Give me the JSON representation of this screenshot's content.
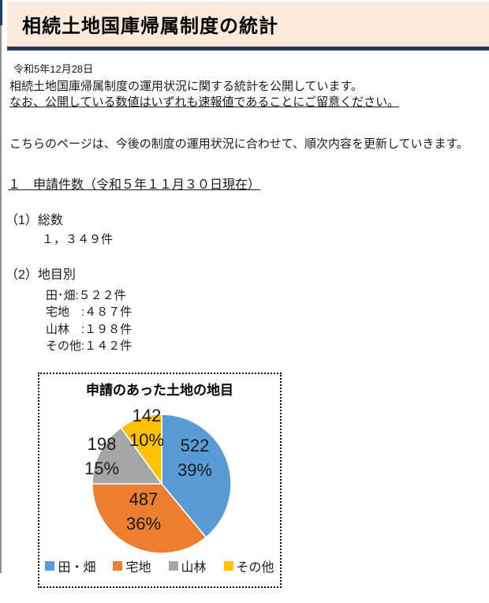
{
  "header": {
    "title": "相続土地国庫帰属制度の統計"
  },
  "date": "令和5年12月28日",
  "intro": {
    "line1": "相続土地国庫帰属制度の運用状況に関する統計を公開しています。",
    "line2": "なお、公開している数値はいずれも速報値であることにご留意ください。",
    "line3": "こちらのページは、今後の制度の運用状況に合わせて、順次内容を更新していきます。"
  },
  "section1": {
    "heading": "１　申請件数（令和５年１１月３０日現在）",
    "sub1_label": "（1）総数",
    "total": "１，３４９件",
    "sub2_label": "（2）地目別",
    "breakdown": [
      "田･畑:５２２件",
      "宅地　:４８７件",
      "山林　:１９８件",
      "その他:１４２件"
    ]
  },
  "chart_data": {
    "type": "pie",
    "title": "申請のあった土地の地目",
    "categories": [
      "田・畑",
      "宅地",
      "山林",
      "その他"
    ],
    "values": [
      522,
      487,
      198,
      142
    ],
    "percents": [
      39,
      36,
      15,
      10
    ],
    "colors": [
      "#5B9BD5",
      "#ED7D31",
      "#A5A5A5",
      "#FFC000"
    ],
    "start_angle_deg": 0,
    "clockwise": true,
    "legend_position": "bottom",
    "labels": [
      {
        "value": "522",
        "percent": "39%"
      },
      {
        "value": "487",
        "percent": "36%"
      },
      {
        "value": "198",
        "percent": "15%"
      },
      {
        "value": "142",
        "percent": "10%"
      }
    ]
  },
  "accent_colors": {
    "header_bg": "#faeadd",
    "header_border": "#1f3864"
  }
}
